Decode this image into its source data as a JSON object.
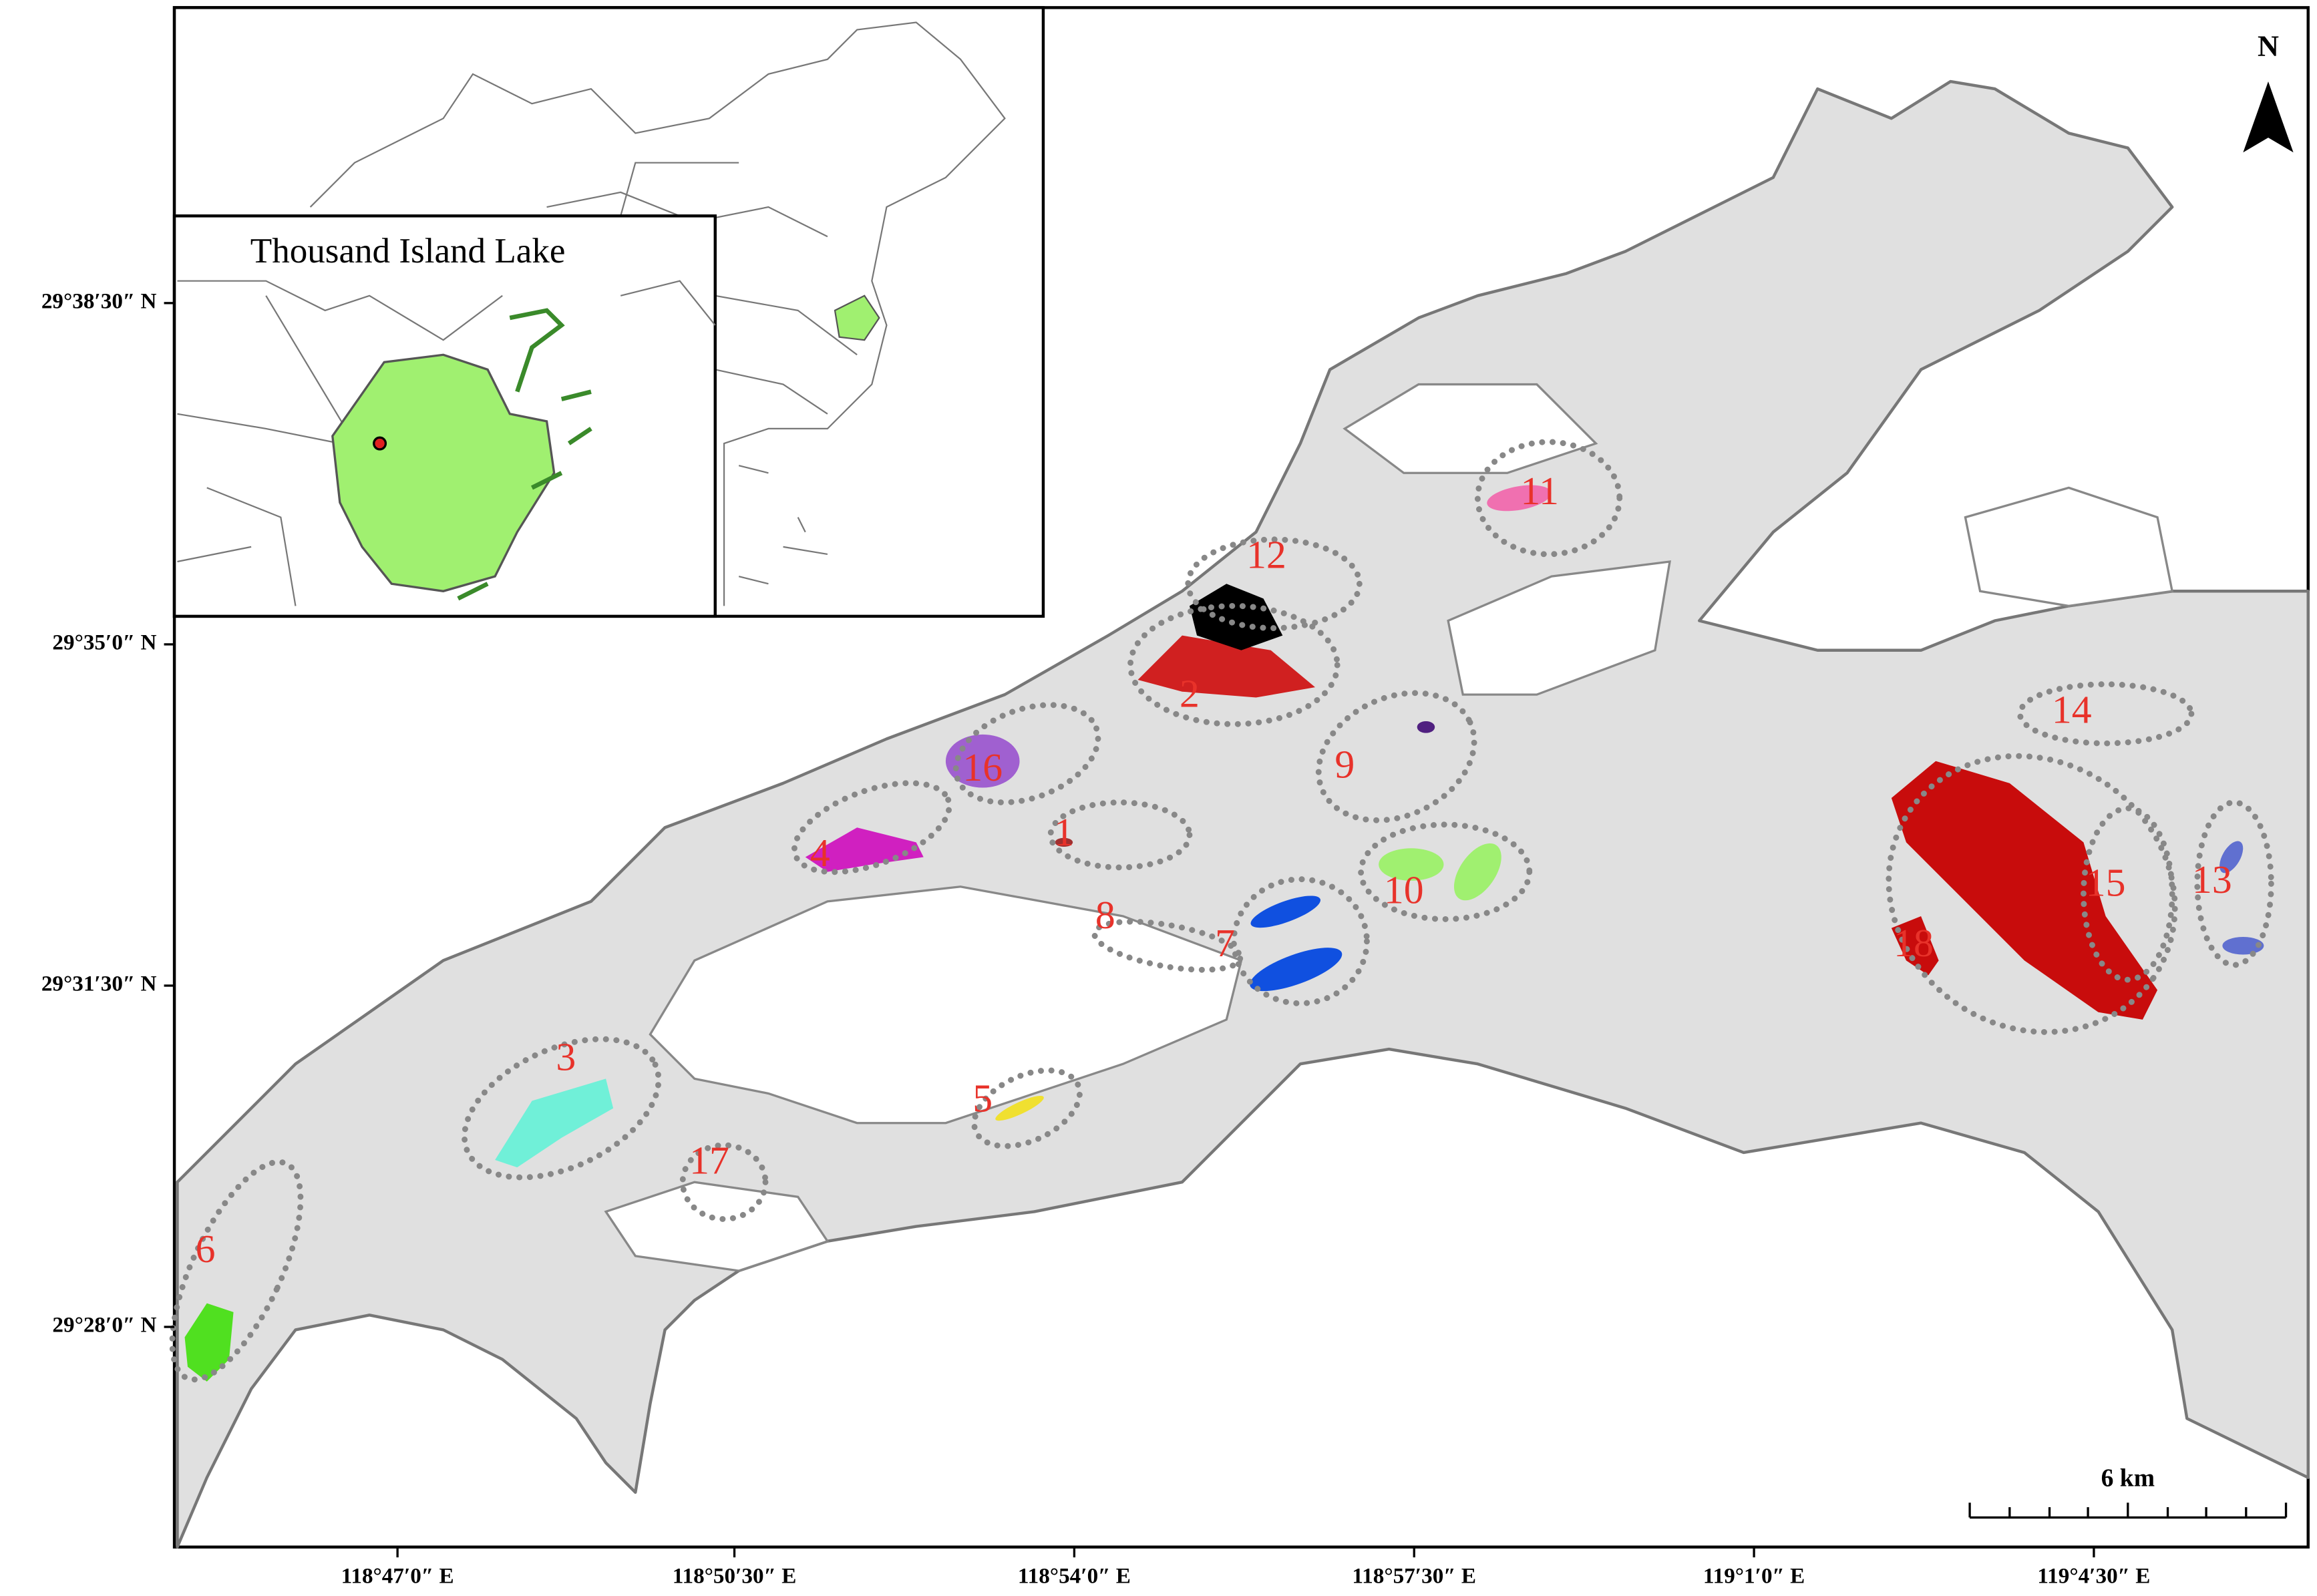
{
  "map": {
    "inset_title": "Thousand Island Lake",
    "north_label": "N",
    "scale_label": "6 km",
    "lat_ticks": [
      "29°38′30″ N",
      "29°35′0″ N",
      "29°31′30″ N",
      "29°28′0″ N"
    ],
    "lon_ticks": [
      "118°47′0″ E",
      "118°50′30″ E",
      "118°54′0″ E",
      "118°57′30″ E",
      "119°1′0″ E",
      "119°4′30″ E"
    ],
    "sites": [
      "1",
      "2",
      "3",
      "4",
      "5",
      "6",
      "7",
      "8",
      "9",
      "10",
      "11",
      "12",
      "13",
      "14",
      "15",
      "16",
      "17",
      "18"
    ]
  }
}
